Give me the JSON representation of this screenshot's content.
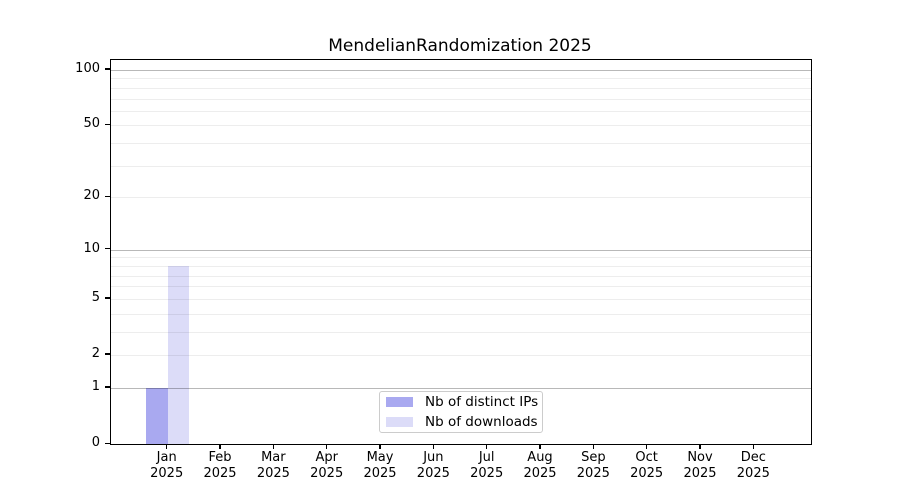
{
  "chart": {
    "title": "MendelianRandomization 2025"
  },
  "chart_data": {
    "type": "bar",
    "title": "MendelianRandomization 2025",
    "categories": [
      "Jan",
      "Feb",
      "Mar",
      "Apr",
      "May",
      "Jun",
      "Jul",
      "Aug",
      "Sep",
      "Oct",
      "Nov",
      "Dec"
    ],
    "category_year": "2025",
    "series": [
      {
        "name": "Nb of distinct IPs",
        "color": "#a9a9f0",
        "values": [
          1,
          0,
          0,
          0,
          0,
          0,
          0,
          0,
          0,
          0,
          0,
          0
        ]
      },
      {
        "name": "Nb of downloads",
        "color": "#dcdcf8",
        "values": [
          8,
          0,
          0,
          0,
          0,
          0,
          0,
          0,
          0,
          0,
          0,
          0
        ]
      }
    ],
    "xlabel": "",
    "ylabel": "",
    "yscale": "log1p",
    "ylim": [
      0,
      113
    ],
    "yticks": [
      0,
      1,
      2,
      5,
      10,
      20,
      50,
      100
    ],
    "major_gridlines": [
      1,
      10,
      100
    ],
    "minor_gridlines": [
      2,
      3,
      4,
      5,
      6,
      7,
      8,
      9,
      20,
      30,
      40,
      50,
      60,
      70,
      80,
      90
    ],
    "grid": true,
    "legend_position": "lower center"
  },
  "legend": {
    "items": [
      {
        "label": "Nb of distinct IPs"
      },
      {
        "label": "Nb of downloads"
      }
    ]
  }
}
